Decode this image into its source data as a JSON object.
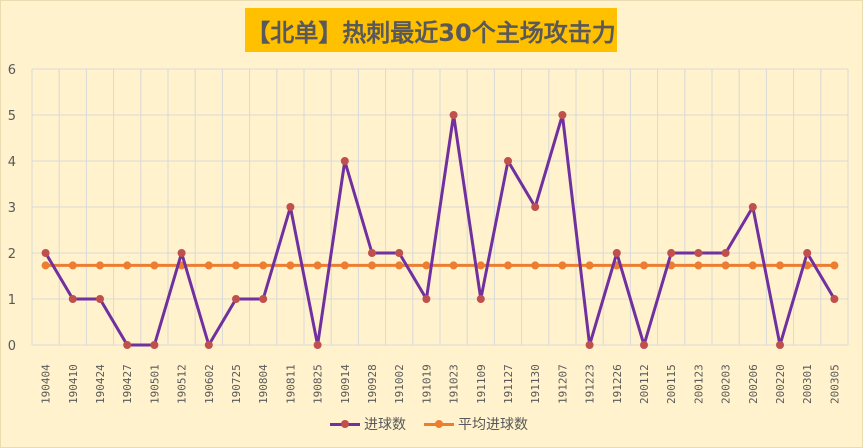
{
  "title": "【北单】热刺最近30个主场攻击力",
  "colors": {
    "background": "#fff2cc",
    "title_bg": "#ffc000",
    "title_text": "#595959",
    "goals_line": "#7030a0",
    "goals_marker": "#c0504d",
    "avg_line": "#ed7d31",
    "grid": "#d9d9d9"
  },
  "legend": [
    {
      "label": "进球数",
      "icon": "purple-line-with-marker"
    },
    {
      "label": "平均进球数",
      "icon": "orange-line-with-marker"
    }
  ],
  "chart_data": {
    "type": "line",
    "title": "【北单】热刺最近30个主场攻击力",
    "xlabel": "",
    "ylabel": "",
    "ylim": [
      0,
      6
    ],
    "yticks": [
      0,
      1,
      2,
      3,
      4,
      5,
      6
    ],
    "grid": {
      "horizontal": true,
      "vertical": true
    },
    "legend_position": "bottom",
    "categories": [
      "190404",
      "190410",
      "190424",
      "190427",
      "190501",
      "190512",
      "190602",
      "190725",
      "190804",
      "190811",
      "190825",
      "190914",
      "190928",
      "191002",
      "191019",
      "191023",
      "191109",
      "191127",
      "191130",
      "191207",
      "191223",
      "191226",
      "200112",
      "200115",
      "200123",
      "200203",
      "200206",
      "200220",
      "200301",
      "200305"
    ],
    "series": [
      {
        "name": "进球数",
        "values": [
          2,
          1,
          1,
          0,
          0,
          2,
          0,
          1,
          1,
          3,
          0,
          4,
          2,
          2,
          1,
          5,
          1,
          4,
          3,
          5,
          0,
          2,
          0,
          2,
          2,
          2,
          3,
          0,
          2,
          1
        ]
      },
      {
        "name": "平均进球数",
        "values": [
          1.73,
          1.73,
          1.73,
          1.73,
          1.73,
          1.73,
          1.73,
          1.73,
          1.73,
          1.73,
          1.73,
          1.73,
          1.73,
          1.73,
          1.73,
          1.73,
          1.73,
          1.73,
          1.73,
          1.73,
          1.73,
          1.73,
          1.73,
          1.73,
          1.73,
          1.73,
          1.73,
          1.73,
          1.73,
          1.73
        ]
      }
    ]
  }
}
